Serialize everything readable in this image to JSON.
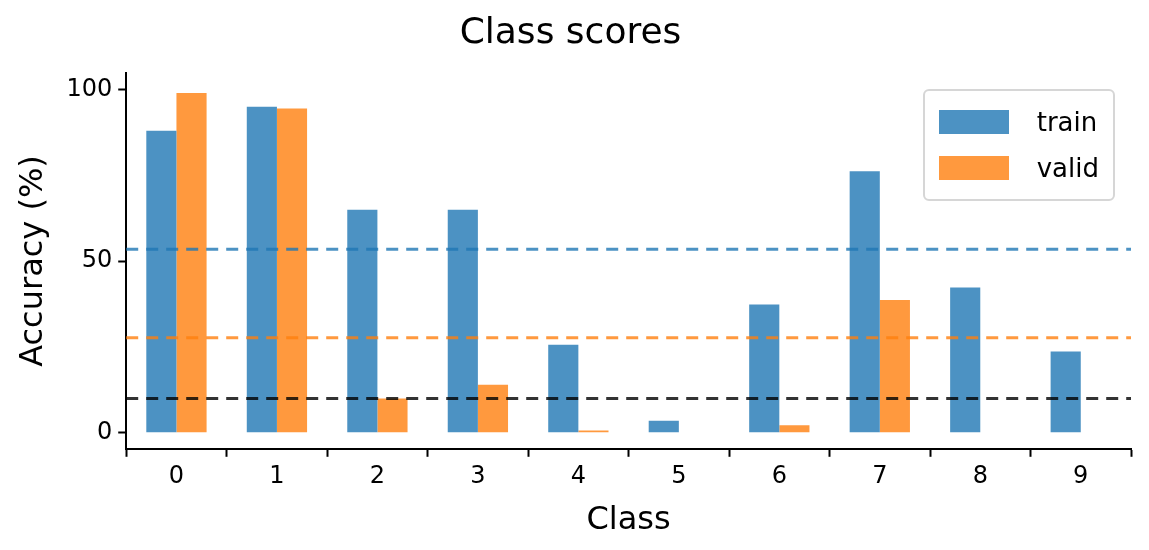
{
  "chart_data": {
    "type": "bar",
    "title": "Class scores",
    "xlabel": "Class",
    "ylabel": "Accuracy (%)",
    "categories": [
      "0",
      "1",
      "2",
      "3",
      "4",
      "5",
      "6",
      "7",
      "8",
      "9"
    ],
    "series": [
      {
        "name": "train",
        "color": "#4c92c3",
        "values": [
          88,
          95,
          65,
          65,
          25.6,
          3.5,
          37.4,
          76.2,
          42.3,
          23.7
        ]
      },
      {
        "name": "valid",
        "color": "#ff993e",
        "values": [
          99,
          94.5,
          10,
          14,
          0.6,
          0,
          2.2,
          38.7,
          0,
          0
        ]
      }
    ],
    "ylim": [
      -4.7,
      104.8
    ],
    "yticks": [
      0,
      50,
      100
    ],
    "grid": false,
    "legend": "top right",
    "ref_lines": [
      {
        "axis": "y",
        "value": 53.5,
        "color": "#1f77b4",
        "line_style": "dashed"
      },
      {
        "axis": "y",
        "value": 27.7,
        "color": "#ff7f0e",
        "line_style": "dashed"
      },
      {
        "axis": "y",
        "value": 10,
        "color": "#000000",
        "line_style": "dashed"
      }
    ]
  }
}
